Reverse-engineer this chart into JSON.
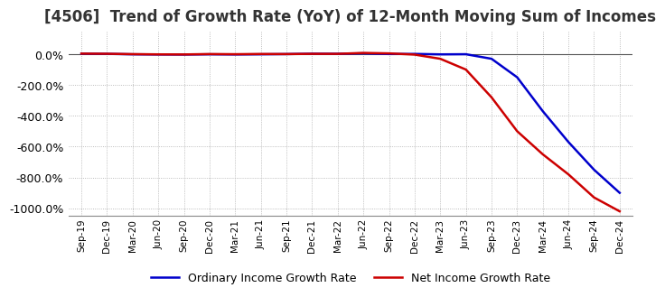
{
  "title": "[4506]  Trend of Growth Rate (YoY) of 12-Month Moving Sum of Incomes",
  "title_fontsize": 12,
  "ylim": [
    -1050,
    150
  ],
  "yticks": [
    0,
    -200,
    -400,
    -600,
    -800,
    -1000
  ],
  "ytick_labels": [
    "0.0%",
    "-200.0%",
    "-400.0%",
    "-600.0%",
    "-800.0%",
    "-1000.0%"
  ],
  "line1_color": "#0000cc",
  "line2_color": "#cc0000",
  "line1_label": "Ordinary Income Growth Rate",
  "line2_label": "Net Income Growth Rate",
  "background_color": "#ffffff",
  "grid_color": "#aaaaaa",
  "x_labels": [
    "Sep-19",
    "Dec-19",
    "Mar-20",
    "Jun-20",
    "Sep-20",
    "Dec-20",
    "Mar-21",
    "Jun-21",
    "Sep-21",
    "Dec-21",
    "Mar-22",
    "Jun-22",
    "Sep-22",
    "Dec-22",
    "Mar-23",
    "Jun-23",
    "Sep-23",
    "Dec-23",
    "Mar-24",
    "Jun-24",
    "Sep-24",
    "Dec-24"
  ],
  "ordinary_income_growth": [
    3.0,
    2.0,
    -1.0,
    -2.0,
    -2.5,
    -1.0,
    -2.0,
    -1.0,
    0.5,
    3.0,
    2.5,
    5.0,
    1.0,
    1.5,
    -1.5,
    -0.5,
    -30.0,
    -150.0,
    -370.0,
    -570.0,
    -750.0,
    -900.0
  ],
  "net_income_growth": [
    3.5,
    2.5,
    0.0,
    -1.5,
    -2.0,
    0.5,
    -0.5,
    1.0,
    0.5,
    2.0,
    2.0,
    8.0,
    5.0,
    -3.0,
    -30.0,
    -100.0,
    -280.0,
    -500.0,
    -650.0,
    -780.0,
    -930.0,
    -1020.0
  ]
}
